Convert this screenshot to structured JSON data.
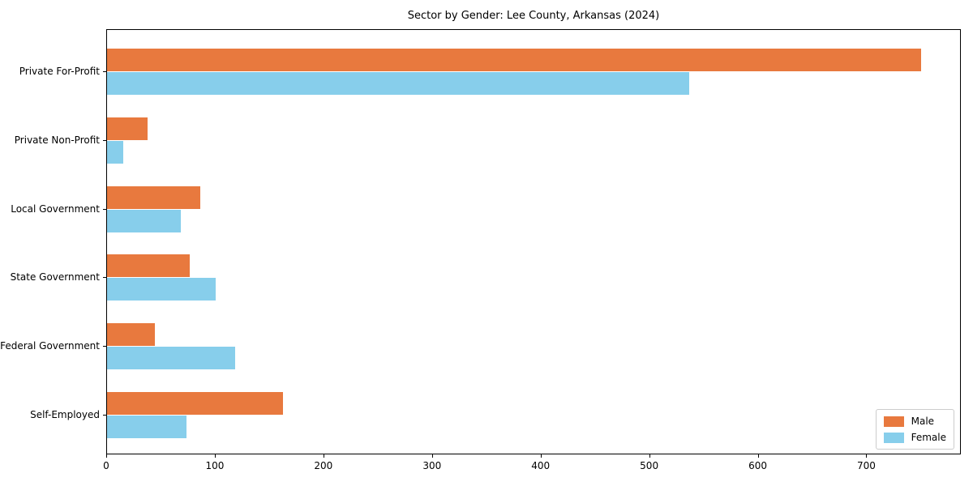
{
  "title": "Sector by Gender: Lee County, Arkansas (2024)",
  "chart_data": {
    "type": "bar",
    "orientation": "horizontal",
    "title": "Sector by Gender: Lee County, Arkansas (2024)",
    "xlabel": "",
    "ylabel": "",
    "categories": [
      "Private For-Profit",
      "Private Non-Profit",
      "Local Government",
      "State Government",
      "Federal Government",
      "Self-Employed"
    ],
    "series": [
      {
        "name": "Male",
        "color": "#e8793e",
        "values": [
          750,
          37,
          86,
          76,
          44,
          162
        ]
      },
      {
        "name": "Female",
        "color": "#87ceeb",
        "values": [
          536,
          15,
          68,
          100,
          118,
          73
        ]
      }
    ],
    "xlim": [
      0,
      787
    ],
    "xticks": [
      0,
      100,
      200,
      300,
      400,
      500,
      600,
      700
    ],
    "grid": false,
    "legend_position": "lower right"
  },
  "colors": {
    "male": "#e8793e",
    "female": "#87ceeb",
    "spine": "#000000",
    "legend_border": "#cccccc",
    "background": "#ffffff"
  }
}
